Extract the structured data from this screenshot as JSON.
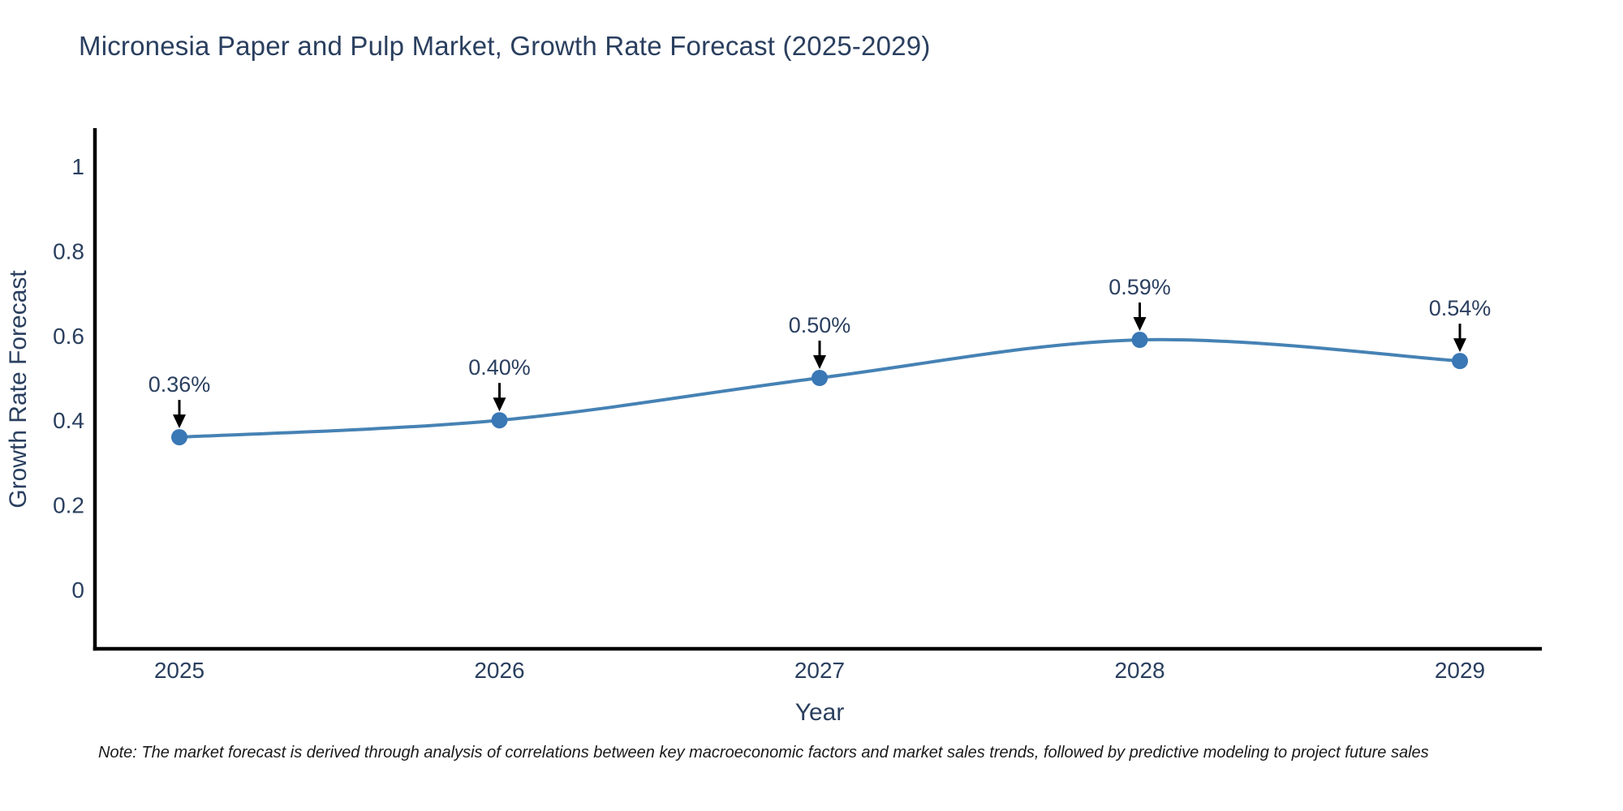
{
  "page": {
    "background": "#ffffff"
  },
  "chart_data": {
    "type": "line",
    "title": "Micronesia Paper and Pulp Market, Growth Rate Forecast (2025-2029)",
    "xlabel": "Year",
    "ylabel": "Growth Rate Forecast",
    "categories": [
      "2025",
      "2026",
      "2027",
      "2028",
      "2029"
    ],
    "series": [
      {
        "name": "Growth Rate Forecast",
        "values": [
          0.36,
          0.4,
          0.5,
          0.59,
          0.54
        ],
        "point_labels": [
          "0.36%",
          "0.40%",
          "0.50%",
          "0.59%",
          "0.54%"
        ]
      }
    ],
    "yticks": {
      "values": [
        0,
        0.2,
        0.4,
        0.6,
        0.8,
        1
      ],
      "labels": [
        "0",
        "0.2",
        "0.4",
        "0.6",
        "0.8",
        "1"
      ]
    },
    "ylim": [
      -0.14,
      1.09
    ],
    "grid": false,
    "legend": "none",
    "line_shape": "spline",
    "annotations_have_arrows": true,
    "colors": {
      "line": "#4682b4",
      "marker": "#3a77b5",
      "axis": "#000000",
      "text": "#2a3f5f",
      "annotation_text": "#2a3f5f",
      "annotation_arrow": "#000000"
    }
  },
  "note": {
    "text": "Note: The market forecast is derived through analysis of correlations between key macroeconomic factors and market sales trends, followed by predictive modeling to project future sales",
    "color": "#1a1a1a"
  }
}
